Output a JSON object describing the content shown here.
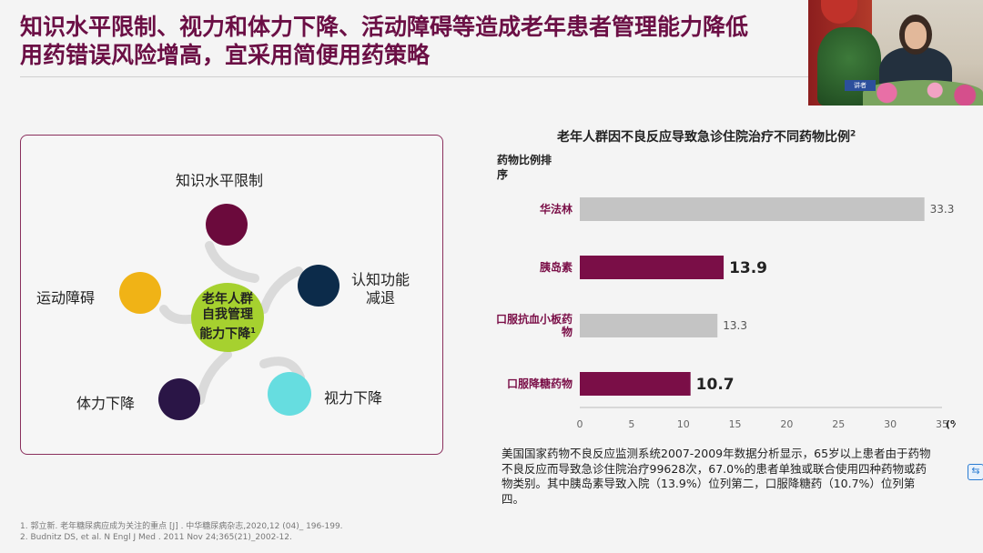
{
  "slide": {
    "title_line1": "知识水平限制、视力和体力下降、活动障碍等造成老年患者管理能力降低",
    "title_line2": "用药错误风险增高，宜采用简便用药策略"
  },
  "diagram": {
    "center_line1": "老年人群",
    "center_line2": "自我管理",
    "center_line3": "能力下降",
    "center_sup": "1",
    "nodes": [
      {
        "label": "知识水平限制",
        "color": "#6b0a3c"
      },
      {
        "label_line1": "认知功能",
        "label_line2": "减退",
        "color": "#0c2b4a"
      },
      {
        "label": "视力下降",
        "color": "#66dde0"
      },
      {
        "label": "体力下降",
        "color": "#2a1546"
      },
      {
        "label": "运动障碍",
        "color": "#f0b316"
      }
    ]
  },
  "chart_data": {
    "type": "bar",
    "orientation": "horizontal",
    "title": "老年人群因不良反应导致急诊住院治疗不同药物比例",
    "title_sup": "2",
    "ylabel_line1": "药物比例排",
    "ylabel_line2": "序",
    "xlabel": "(%)",
    "categories": [
      "华法林",
      "胰岛素",
      "口服抗血小板药物",
      "口服降糖药物"
    ],
    "category_lines": [
      [
        "华法林"
      ],
      [
        "胰岛素"
      ],
      [
        "口服抗血小板药",
        "物"
      ],
      [
        "口服降糖药物"
      ]
    ],
    "values": [
      33.3,
      13.9,
      13.3,
      10.7
    ],
    "value_labels": [
      "33.3",
      "13.9",
      "13.3",
      "10.7"
    ],
    "highlight": [
      false,
      true,
      false,
      true
    ],
    "colors": {
      "normal": "#c4c4c4",
      "highlight": "#7a0e47",
      "category_text": "#7a0e47"
    },
    "xlim": [
      0,
      35
    ],
    "xticks": [
      0,
      5,
      10,
      15,
      20,
      25,
      30,
      35
    ]
  },
  "description": "美国国家药物不良反应监测系统2007-2009年数据分析显示，65岁以上患者由于药物不良反应而导致急诊住院治疗99628次，67.0%的患者单独或联合使用四种药物或药物类别。其中胰岛素导致入院（13.9%）位列第二，口服降糖药（10.7%）位列第四。",
  "references": [
    "1. 郭立新. 老年糖尿病应成为关注的重点 [J] . 中华糖尿病杂志,2020,12 (04)_ 196-199.",
    "2. Budnitz DS, et al. N Engl J Med . 2011 Nov 24;365(21)_2002-12."
  ],
  "video": {
    "sign_text": "讲者"
  }
}
